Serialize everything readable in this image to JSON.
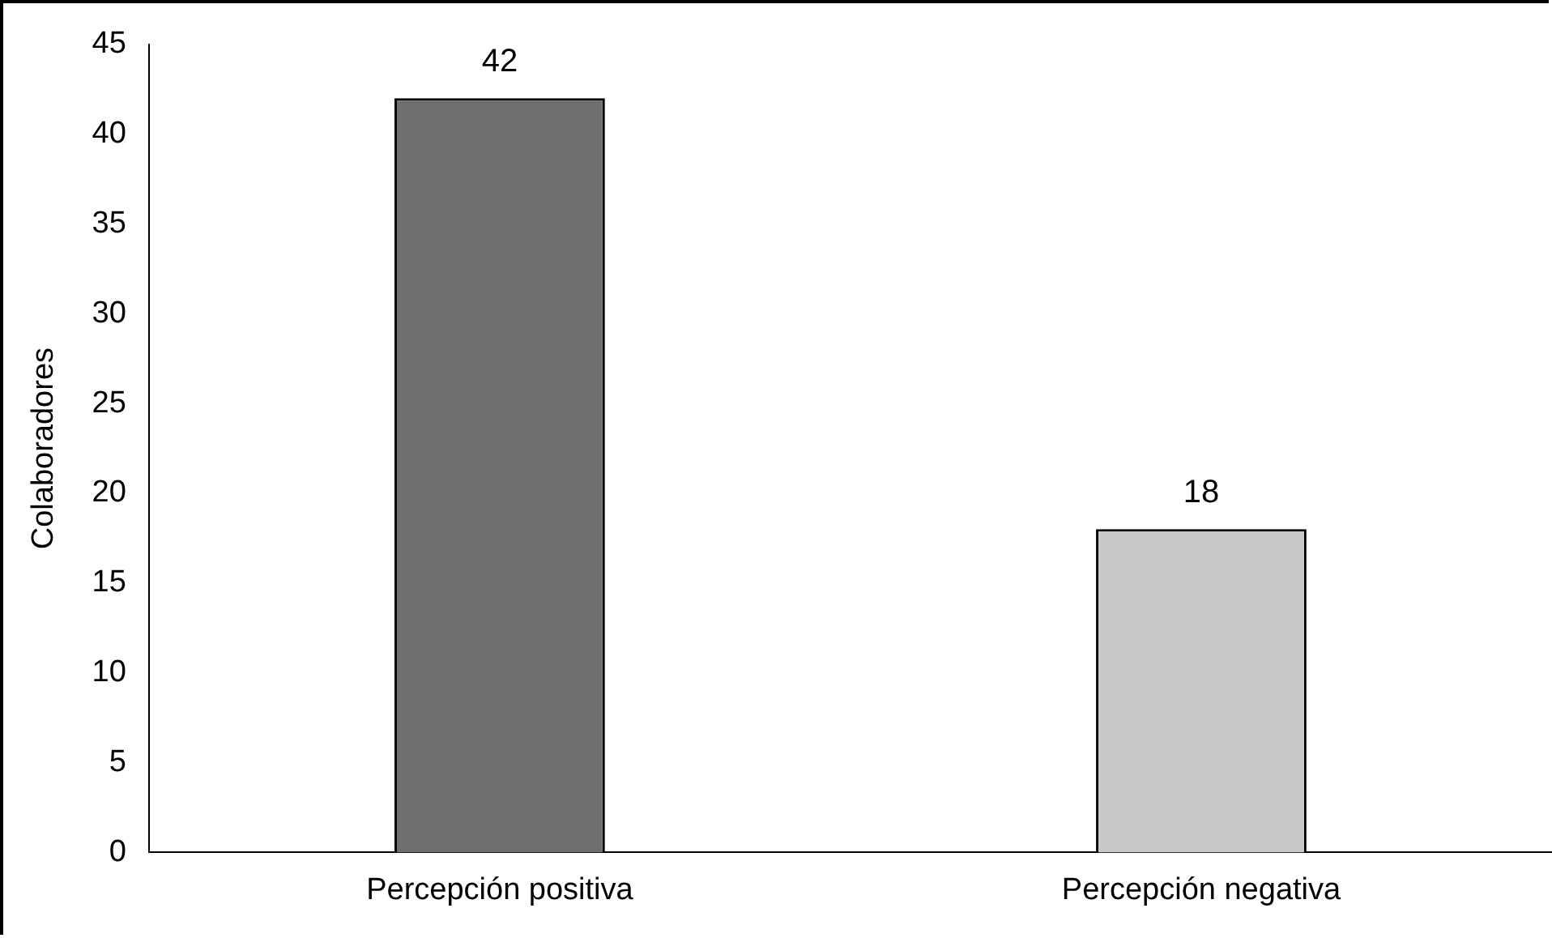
{
  "chart_data": {
    "type": "bar",
    "ylabel": "Colaboradores",
    "categories": [
      "Percepción positiva",
      "Percepción negativa"
    ],
    "values": [
      42,
      18
    ],
    "colors": [
      "#6e6e6e",
      "#c8c8c8"
    ],
    "ylim": [
      0,
      45
    ],
    "yticks": [
      0,
      5,
      10,
      15,
      20,
      25,
      30,
      35,
      40,
      45
    ],
    "grid": false,
    "legend": false,
    "data_labels": true
  }
}
